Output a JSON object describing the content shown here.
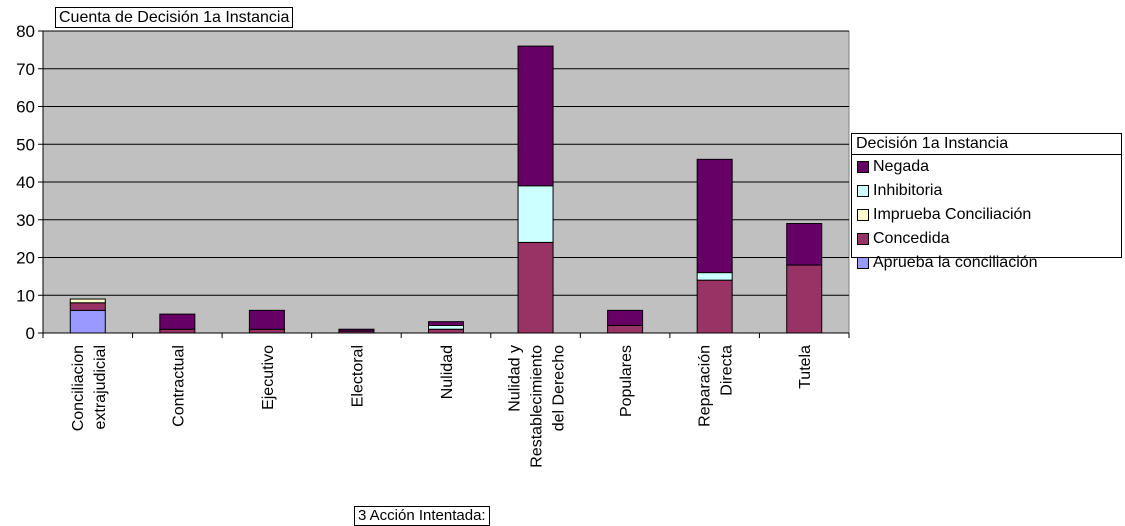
{
  "chart_data": {
    "type": "bar",
    "stacked": true,
    "title": "Cuenta de Decisión 1a Instancia",
    "xlabel": "3 Acción Intentada:",
    "ylabel": "",
    "ylim": [
      0,
      80
    ],
    "yticks": [
      0,
      10,
      20,
      30,
      40,
      50,
      60,
      70,
      80
    ],
    "grid": true,
    "legend_title": "Decisión 1a Instancia",
    "legend_position": "right",
    "background_color": "#c0c0c0",
    "categories": [
      [
        "Conciliacion",
        "extrajudicial"
      ],
      [
        "Contractual"
      ],
      [
        "Ejecutivo"
      ],
      [
        "Electoral"
      ],
      [
        "Nulidad"
      ],
      [
        "Nulidad  y",
        "Restablecimiento",
        "del Derecho"
      ],
      [
        "Populares"
      ],
      [
        "Reparación",
        "Directa"
      ],
      [
        "Tutela"
      ]
    ],
    "series": [
      {
        "name": "Aprueba la conciliación",
        "color": "#9999ff",
        "values": [
          6,
          0,
          0,
          0,
          0,
          0,
          0,
          0,
          0
        ]
      },
      {
        "name": "Concedida",
        "color": "#993366",
        "values": [
          2,
          1,
          1,
          0.5,
          1,
          24,
          2,
          14,
          18
        ]
      },
      {
        "name": "Imprueba Conciliación",
        "color": "#ffffcc",
        "values": [
          1,
          0,
          0,
          0,
          0,
          0,
          0,
          0,
          0
        ]
      },
      {
        "name": "Inhibitoria",
        "color": "#ccffff",
        "values": [
          0,
          0,
          0,
          0,
          1,
          15,
          0,
          2,
          0
        ]
      },
      {
        "name": "Negada",
        "color": "#660066",
        "values": [
          0,
          4,
          5,
          0.5,
          1,
          37,
          4,
          30,
          11
        ]
      }
    ],
    "legend_order": [
      "Negada",
      "Inhibitoria",
      "Imprueba Conciliación",
      "Concedida",
      "Aprueba la conciliación"
    ]
  }
}
